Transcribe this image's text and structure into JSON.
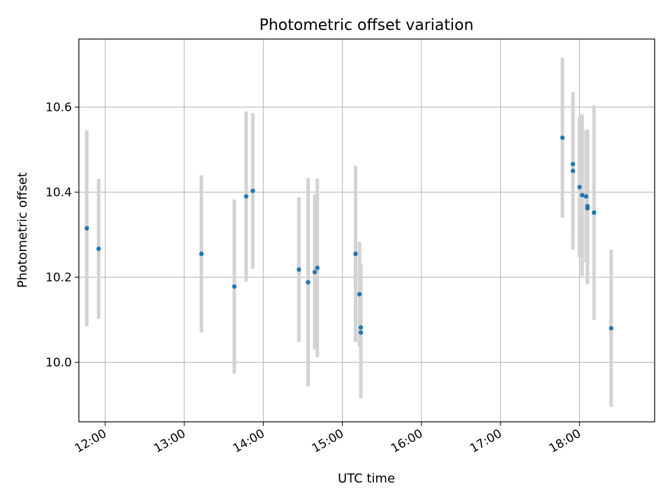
{
  "chart_data": {
    "type": "scatter",
    "title": "Photometric offset variation",
    "xlabel": "UTC time",
    "ylabel": "Photometric offset",
    "x_tick_labels": [
      "12:00",
      "13:00",
      "14:00",
      "15:00",
      "16:00",
      "17:00",
      "18:00"
    ],
    "y_tick_labels": [
      "10.0",
      "10.2",
      "10.4",
      "10.6"
    ],
    "xlim": [
      "11:40",
      "18:57"
    ],
    "ylim": [
      9.86,
      10.76
    ],
    "grid": true,
    "point_color": "#1f77b4",
    "errorbar_color": "#d3d3d3",
    "points": [
      {
        "x": "11:46",
        "y": 10.315,
        "yerr": 0.23
      },
      {
        "x": "11:55",
        "y": 10.267,
        "yerr": 0.165
      },
      {
        "x": "13:13",
        "y": 10.255,
        "yerr": 0.185
      },
      {
        "x": "13:38",
        "y": 10.178,
        "yerr": 0.205
      },
      {
        "x": "13:47",
        "y": 10.39,
        "yerr": 0.2
      },
      {
        "x": "13:52",
        "y": 10.403,
        "yerr": 0.183
      },
      {
        "x": "14:27",
        "y": 10.218,
        "yerr": 0.17
      },
      {
        "x": "14:34",
        "y": 10.188,
        "yerr": 0.245
      },
      {
        "x": "14:39",
        "y": 10.212,
        "yerr": 0.182
      },
      {
        "x": "14:41",
        "y": 10.222,
        "yerr": 0.21
      },
      {
        "x": "15:10",
        "y": 10.255,
        "yerr": 0.207
      },
      {
        "x": "15:13",
        "y": 10.16,
        "yerr": 0.123
      },
      {
        "x": "15:14",
        "y": 10.082,
        "yerr": 0.15
      },
      {
        "x": "15:14",
        "y": 10.07,
        "yerr": 0.155
      },
      {
        "x": "17:47",
        "y": 10.528,
        "yerr": 0.188
      },
      {
        "x": "17:55",
        "y": 10.45,
        "yerr": 0.185
      },
      {
        "x": "17:55",
        "y": 10.466,
        "yerr": 0.168
      },
      {
        "x": "18:00",
        "y": 10.412,
        "yerr": 0.165
      },
      {
        "x": "18:02",
        "y": 10.393,
        "yerr": 0.19
      },
      {
        "x": "18:05",
        "y": 10.39,
        "yerr": 0.155
      },
      {
        "x": "18:06",
        "y": 10.367,
        "yerr": 0.18
      },
      {
        "x": "18:06",
        "y": 10.362,
        "yerr": 0.178
      },
      {
        "x": "18:11",
        "y": 10.352,
        "yerr": 0.252
      },
      {
        "x": "18:24",
        "y": 10.08,
        "yerr": 0.185
      }
    ]
  }
}
